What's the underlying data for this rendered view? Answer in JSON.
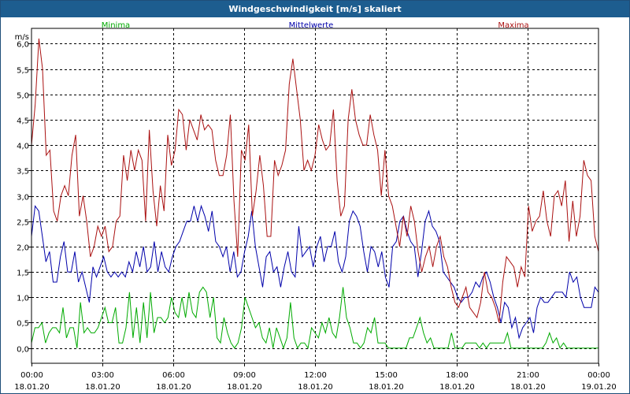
{
  "window": {
    "title": "Windgeschwindigkeit [m/s] skaliert"
  },
  "chart_data": {
    "type": "line",
    "title": "Windgeschwindigkeit [m/s] skaliert",
    "ylabel": "m/s",
    "xlabel": "",
    "ylim": [
      -0.3,
      6.3
    ],
    "xlim_hours": [
      0,
      24
    ],
    "grid": true,
    "y_ticks": [
      {
        "v": 0.0,
        "label": "0,0"
      },
      {
        "v": 0.5,
        "label": "0,5"
      },
      {
        "v": 1.0,
        "label": "1,0"
      },
      {
        "v": 1.5,
        "label": "1,5"
      },
      {
        "v": 2.0,
        "label": "2,0"
      },
      {
        "v": 2.5,
        "label": "2,5"
      },
      {
        "v": 3.0,
        "label": "3,0"
      },
      {
        "v": 3.5,
        "label": "3,5"
      },
      {
        "v": 4.0,
        "label": "4,0"
      },
      {
        "v": 4.5,
        "label": "4,5"
      },
      {
        "v": 5.0,
        "label": "5,0"
      },
      {
        "v": 5.5,
        "label": "5,5"
      },
      {
        "v": 6.0,
        "label": "6,0"
      }
    ],
    "x_ticks": [
      {
        "h": 0,
        "time": "00:00",
        "date": "18.01.20"
      },
      {
        "h": 3,
        "time": "03:00",
        "date": "18.01.20"
      },
      {
        "h": 6,
        "time": "06:00",
        "date": "18.01.20"
      },
      {
        "h": 9,
        "time": "09:00",
        "date": "18.01.20"
      },
      {
        "h": 12,
        "time": "12:00",
        "date": "18.01.20"
      },
      {
        "h": 15,
        "time": "15:00",
        "date": "18.01.20"
      },
      {
        "h": 18,
        "time": "18:00",
        "date": "18.01.20"
      },
      {
        "h": 21,
        "time": "21:00",
        "date": "18.01.20"
      },
      {
        "h": 24,
        "time": "00:00",
        "date": "19.01.20"
      }
    ],
    "legend": {
      "placement": "top",
      "entries": [
        "Minima",
        "Mittelwerte",
        "Maxima"
      ]
    },
    "series": [
      {
        "name": "Minima",
        "color": "#00aa00",
        "values": [
          0.1,
          0.4,
          0.4,
          0.5,
          0.1,
          0.3,
          0.4,
          0.4,
          0.3,
          0.8,
          0.2,
          0.4,
          0.4,
          0.0,
          0.9,
          0.3,
          0.4,
          0.3,
          0.3,
          0.4,
          0.6,
          0.8,
          0.5,
          0.5,
          0.8,
          0.1,
          0.1,
          0.4,
          1.1,
          0.2,
          0.8,
          0.1,
          0.9,
          0.2,
          1.1,
          0.3,
          0.6,
          0.6,
          0.5,
          0.6,
          1.0,
          0.7,
          0.6,
          1.0,
          0.6,
          1.1,
          0.7,
          0.6,
          1.1,
          1.2,
          1.1,
          0.6,
          1.0,
          0.2,
          0.1,
          0.6,
          0.3,
          0.1,
          0.0,
          0.1,
          0.4,
          1.0,
          0.8,
          0.6,
          0.4,
          0.5,
          0.2,
          0.1,
          0.4,
          0.0,
          0.4,
          0.2,
          0.0,
          0.2,
          0.9,
          0.2,
          0.0,
          0.1,
          0.1,
          0.0,
          0.4,
          0.3,
          0.2,
          0.5,
          0.3,
          0.6,
          0.3,
          0.2,
          0.6,
          1.2,
          0.6,
          0.4,
          0.1,
          0.1,
          0.0,
          0.1,
          0.4,
          0.3,
          0.6,
          0.1,
          0.1,
          0.1,
          0.0,
          0.0,
          0.0,
          0.0,
          0.0,
          0.0,
          0.2,
          0.2,
          0.4,
          0.6,
          0.3,
          0.1,
          0.2,
          0.0,
          0.0,
          0.0,
          0.0,
          0.0,
          0.3,
          0.0,
          0.0,
          0.0,
          0.1,
          0.1,
          0.1,
          0.1,
          0.0,
          0.1,
          0.0,
          0.1,
          0.1,
          0.1,
          0.1,
          0.1,
          0.3,
          0.0,
          0.0,
          0.0,
          0.0,
          0.0,
          0.0,
          0.0,
          0.0,
          0.0,
          0.0,
          0.1,
          0.3,
          0.1,
          0.2,
          0.0,
          0.1,
          0.0,
          0.0,
          0.0,
          0.0,
          0.0,
          0.0,
          0.0,
          0.0,
          0.0,
          0.0
        ]
      },
      {
        "name": "Mittelwerte",
        "color": "#0000aa",
        "values": [
          2.2,
          2.8,
          2.7,
          2.2,
          1.7,
          1.9,
          1.3,
          1.3,
          1.8,
          2.1,
          1.5,
          1.5,
          1.9,
          1.3,
          1.5,
          1.2,
          0.9,
          1.6,
          1.4,
          1.6,
          1.8,
          1.5,
          1.4,
          1.5,
          1.4,
          1.5,
          1.4,
          1.7,
          1.5,
          1.9,
          1.6,
          2.0,
          1.5,
          1.6,
          2.1,
          1.5,
          1.9,
          1.6,
          1.5,
          1.8,
          2.0,
          2.1,
          2.3,
          2.5,
          2.5,
          2.8,
          2.5,
          2.8,
          2.6,
          2.3,
          2.7,
          2.1,
          2.0,
          1.8,
          2.0,
          1.5,
          1.9,
          1.4,
          1.5,
          1.9,
          2.2,
          2.7,
          2.0,
          1.6,
          1.2,
          1.8,
          1.9,
          1.5,
          1.6,
          1.2,
          1.6,
          1.9,
          1.5,
          1.4,
          2.4,
          1.8,
          1.9,
          2.0,
          1.6,
          2.0,
          2.2,
          1.7,
          2.0,
          2.0,
          2.3,
          1.7,
          1.5,
          1.8,
          2.5,
          2.7,
          2.6,
          2.4,
          1.9,
          1.5,
          2.0,
          1.9,
          1.6,
          1.9,
          1.4,
          1.2,
          2.0,
          2.1,
          2.5,
          2.6,
          2.3,
          2.1,
          2.0,
          1.4,
          1.9,
          2.5,
          2.7,
          2.4,
          2.3,
          2.1,
          1.5,
          1.4,
          1.3,
          1.2,
          1.0,
          0.9,
          1.0,
          1.0,
          1.1,
          1.3,
          1.2,
          1.4,
          1.5,
          1.3,
          1.0,
          0.8,
          0.5,
          0.9,
          0.8,
          0.4,
          0.6,
          0.2,
          0.4,
          0.5,
          0.6,
          0.3,
          0.8,
          1.0,
          0.9,
          0.9,
          1.0,
          1.1,
          1.1,
          1.1,
          1.0,
          1.5,
          1.3,
          1.4,
          1.0,
          0.8,
          0.8,
          0.8,
          1.2,
          1.1
        ]
      },
      {
        "name": "Maxima",
        "color": "#aa1111",
        "values": [
          4.0,
          4.8,
          6.1,
          5.5,
          3.8,
          3.9,
          2.7,
          2.5,
          3.0,
          3.2,
          3.0,
          3.8,
          4.2,
          2.6,
          3.0,
          2.5,
          1.8,
          2.0,
          2.4,
          2.2,
          2.4,
          1.9,
          2.0,
          2.5,
          2.6,
          3.8,
          3.3,
          3.9,
          3.5,
          3.9,
          3.7,
          2.5,
          4.3,
          3.1,
          2.4,
          3.2,
          2.7,
          4.2,
          3.6,
          3.9,
          4.7,
          4.6,
          3.9,
          4.5,
          4.3,
          4.1,
          4.6,
          4.3,
          4.4,
          4.3,
          3.7,
          3.4,
          3.4,
          3.8,
          4.6,
          2.9,
          1.8,
          3.9,
          3.7,
          4.4,
          2.6,
          3.1,
          3.8,
          3.2,
          2.2,
          2.2,
          3.7,
          3.4,
          3.6,
          3.9,
          5.2,
          5.7,
          5.1,
          4.5,
          3.5,
          3.7,
          3.5,
          3.8,
          4.4,
          4.1,
          3.9,
          4.0,
          4.7,
          3.3,
          2.6,
          2.8,
          4.5,
          5.1,
          4.5,
          4.2,
          4.0,
          4.0,
          4.6,
          4.2,
          3.9,
          3.0,
          3.9,
          3.0,
          2.8,
          2.4,
          2.0,
          2.6,
          2.2,
          2.8,
          2.5,
          1.9,
          1.5,
          1.8,
          2.0,
          1.6,
          2.0,
          2.2,
          1.8,
          1.6,
          1.2,
          0.9,
          0.8,
          1.0,
          1.2,
          0.8,
          0.7,
          0.6,
          0.9,
          1.5,
          1.1,
          1.0,
          0.8,
          0.5,
          1.3,
          1.8,
          1.7,
          1.6,
          1.2,
          1.6,
          1.4,
          2.8,
          2.3,
          2.5,
          2.6,
          3.1,
          2.5,
          2.2,
          3.0,
          3.1,
          2.8,
          3.3,
          2.1,
          2.9,
          2.2,
          2.6,
          3.7,
          3.4,
          3.3,
          2.2,
          1.9
        ]
      }
    ]
  }
}
